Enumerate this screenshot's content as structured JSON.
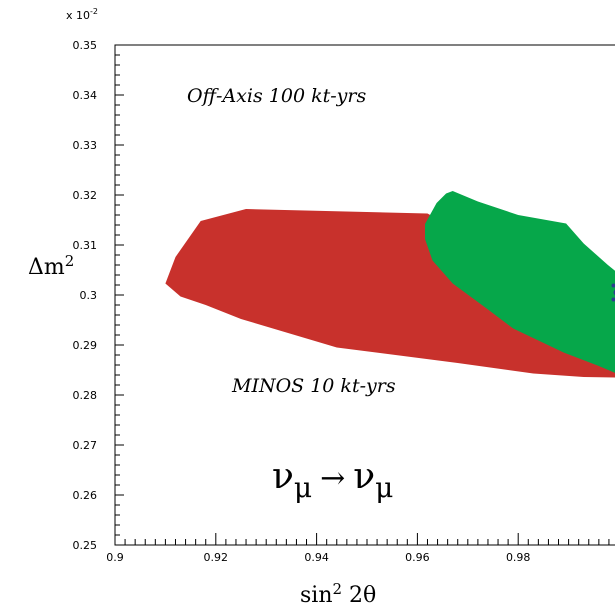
{
  "chart_data": {
    "type": "area",
    "scale_label": {
      "prefix": "x 10",
      "exponent": "-2"
    },
    "xlabel": {
      "base": "sin",
      "sup": "2",
      "rest": " 2θ"
    },
    "ylabel": {
      "base": "Δm",
      "sup": "2"
    },
    "xlim": [
      0.9,
      1.0
    ],
    "ylim": [
      0.25,
      0.35
    ],
    "x_ticks": [
      {
        "value": 0.9,
        "label": "0.9"
      },
      {
        "value": 0.92,
        "label": "0.92"
      },
      {
        "value": 0.94,
        "label": "0.94"
      },
      {
        "value": 0.96,
        "label": "0.96"
      },
      {
        "value": 0.98,
        "label": "0.98"
      }
    ],
    "y_ticks": [
      {
        "value": 0.25,
        "label": "0.25"
      },
      {
        "value": 0.26,
        "label": "0.26"
      },
      {
        "value": 0.27,
        "label": "0.27"
      },
      {
        "value": 0.28,
        "label": "0.28"
      },
      {
        "value": 0.29,
        "label": "0.29"
      },
      {
        "value": 0.3,
        "label": "0.3"
      },
      {
        "value": 0.31,
        "label": "0.31"
      },
      {
        "value": 0.32,
        "label": "0.32"
      },
      {
        "value": 0.33,
        "label": "0.33"
      },
      {
        "value": 0.34,
        "label": "0.34"
      },
      {
        "value": 0.35,
        "label": "0.35"
      }
    ],
    "series": [
      {
        "name": "MINOS 10 kt-yrs",
        "color": "#c8312c",
        "points": [
          [
            0.91,
            0.3023
          ],
          [
            0.912,
            0.3076
          ],
          [
            0.917,
            0.3148
          ],
          [
            0.926,
            0.3172
          ],
          [
            0.962,
            0.3163
          ],
          [
            0.967,
            0.3135
          ],
          [
            0.972,
            0.3092
          ],
          [
            0.983,
            0.301
          ],
          [
            0.992,
            0.2925
          ],
          [
            0.999,
            0.2882
          ],
          [
            1.0,
            0.2875
          ],
          [
            1.0,
            0.2835
          ],
          [
            0.993,
            0.2836
          ],
          [
            0.983,
            0.2843
          ],
          [
            0.968,
            0.2864
          ],
          [
            0.944,
            0.2895
          ],
          [
            0.925,
            0.2952
          ],
          [
            0.918,
            0.298
          ],
          [
            0.913,
            0.2997
          ]
        ]
      },
      {
        "name": "Off-Axis 100 kt-yrs",
        "color": "#06a74a",
        "points": [
          [
            0.9615,
            0.3142
          ],
          [
            0.9638,
            0.3184
          ],
          [
            0.9657,
            0.3203
          ],
          [
            0.967,
            0.3208
          ],
          [
            0.972,
            0.3187
          ],
          [
            0.98,
            0.316
          ],
          [
            0.9895,
            0.3143
          ],
          [
            0.993,
            0.3103
          ],
          [
            0.9978,
            0.306
          ],
          [
            1.0,
            0.3042
          ],
          [
            1.0,
            0.2841
          ],
          [
            0.996,
            0.2858
          ],
          [
            0.989,
            0.2885
          ],
          [
            0.979,
            0.2933
          ],
          [
            0.974,
            0.2971
          ],
          [
            0.967,
            0.3023
          ],
          [
            0.963,
            0.3069
          ],
          [
            0.9615,
            0.3112
          ]
        ]
      }
    ],
    "best_fit_marker": {
      "x": 0.9995,
      "y": 0.3005,
      "color": "#2b3f8f"
    },
    "annotations": {
      "off_axis": "Off-Axis 100 kt-yrs",
      "minos": "MINOS 10 kt-yrs",
      "channel": {
        "nu": "ν",
        "sub": "μ",
        "arrow": "→"
      }
    }
  }
}
